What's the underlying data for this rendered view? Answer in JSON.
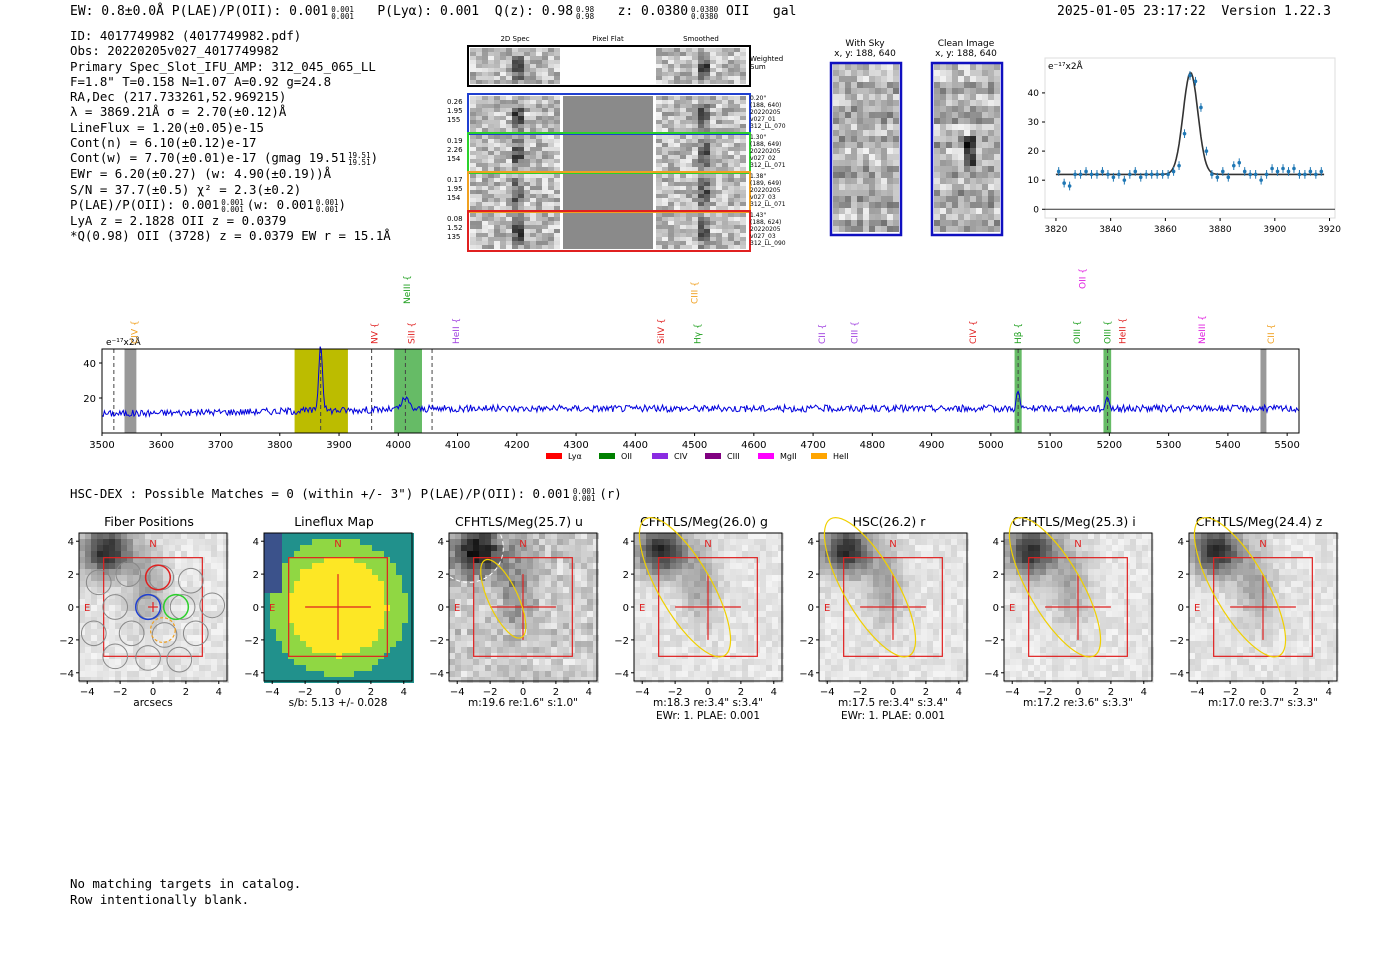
{
  "header": {
    "summary": "EW: 0.8±0.0Å  P(LAE)/P(OII): 0.001",
    "plae_sup": "0.001",
    "plae_sub": "0.001",
    "plya": "P(Lyα): 0.001",
    "qz": "Q(z): 0.98",
    "qz_sup": "0.98",
    "qz_sub": "0.98",
    "z": "z: 0.0380",
    "z_sup": "0.0380",
    "z_sub": "0.0380",
    "line": "OII",
    "gal": "gal",
    "datetime": "2025-01-05 23:17:22",
    "version": "Version 1.22.3"
  },
  "info": {
    "id": "ID: 4017749982 (4017749982.pdf)",
    "obs": "Obs: 20220205v027_4017749982",
    "slot": "Primary Spec_Slot_IFU_AMP: 312_045_065_LL",
    "fwhm": "F=1.8\"  T=0.158  N=1.07  A=0.92  g=24.8",
    "radec": "RA,Dec (217.733261,52.969215)",
    "lambda": "λ = 3869.21Å  σ = 2.70(±0.12)Å",
    "lineflux": "LineFlux = 1.20(±0.05)e-15",
    "contn": "Cont(n) = 6.10(±0.12)e-17",
    "contw": "Cont(w) = 7.70(±0.01)e-17 (gmag 19.51",
    "contw_sup": "19.51",
    "contw_sub": "19.51",
    "ewr": "EWr = 6.20(±0.27) (w: 4.90(±0.19))Å",
    "sn": "S/N = 37.7(±0.5)  χ² = 2.3(±0.2)",
    "plae": "P(LAE)/P(OII): 0.001",
    "plae_sup": "0.001",
    "plae_sub": "0.001",
    "plae_w": "(w: 0.001",
    "plae_w_sup": "0.001",
    "plae_w_sub": "0.001",
    "lya": "LyA z = 2.1828   OII z = 0.0379",
    "q": "*Q(0.98) OII (3728) z = 0.0379   EW r = 15.1Å"
  },
  "spec2d": {
    "col_2d": "2D Spec",
    "col_flat": "Pixel Flat",
    "col_smooth": "Smoothed",
    "weighted": "Weighted Sum",
    "rows": [
      {
        "w": "0.26",
        "s": "1.95",
        "n": "155",
        "color": "#1f3fd0",
        "info": [
          "0.20\"",
          "(188, 640)",
          "20220205",
          "v027_01",
          "312_LL_070"
        ]
      },
      {
        "w": "0.19",
        "s": "2.26",
        "n": "154",
        "color": "#2bd02b",
        "info": [
          "1.30\"",
          "(188, 649)",
          "20220205",
          "v027_02",
          "312_LL_071"
        ]
      },
      {
        "w": "0.17",
        "s": "1.95",
        "n": "154",
        "color": "#f0a020",
        "info": [
          "1.38\"",
          "(189, 649)",
          "20220205",
          "v027_03",
          "312_LL_071"
        ]
      },
      {
        "w": "0.08",
        "s": "1.52",
        "n": "135",
        "color": "#e02020",
        "info": [
          "1.43\"",
          "(188, 624)",
          "20220205",
          "v027_03",
          "312_LL_090"
        ]
      }
    ]
  },
  "cutouts": {
    "sky_title": "With Sky",
    "sky_xy": "x, y: 188, 640",
    "clean_title": "Clean Image",
    "clean_xy": "x, y: 188, 640"
  },
  "fit_chart": {
    "type": "scatter",
    "unit_label": "e⁻¹⁷x2Å",
    "xlim": [
      3816,
      3922
    ],
    "ylim": [
      -3,
      52
    ],
    "xticks": [
      3820,
      3840,
      3860,
      3880,
      3900,
      3920
    ],
    "yticks": [
      0,
      10,
      20,
      30,
      40
    ],
    "points_x": [
      3821,
      3823,
      3825,
      3827,
      3829,
      3831,
      3833,
      3835,
      3837,
      3839,
      3841,
      3843,
      3845,
      3847,
      3849,
      3851,
      3853,
      3855,
      3857,
      3859,
      3861,
      3863,
      3865,
      3867,
      3869,
      3871,
      3873,
      3875,
      3877,
      3879,
      3881,
      3883,
      3885,
      3887,
      3889,
      3891,
      3893,
      3895,
      3897,
      3899,
      3901,
      3903,
      3905,
      3907,
      3909,
      3911,
      3913,
      3915,
      3917
    ],
    "points_y": [
      13,
      9,
      8,
      12,
      12,
      13,
      12,
      12,
      13,
      12,
      11,
      12,
      10,
      12,
      13,
      11,
      12,
      12,
      12,
      12,
      12,
      13,
      15,
      26,
      46,
      44,
      35,
      20,
      12,
      11,
      13,
      11,
      15,
      16,
      13,
      12,
      12,
      10,
      12,
      14,
      13,
      14,
      13,
      14,
      12,
      12,
      13,
      12,
      13
    ],
    "model_color": "#333333",
    "point_color": "#1f77b4"
  },
  "spectrum": {
    "type": "line",
    "unit_label": "e⁻¹⁷x2Å",
    "xlim": [
      3500,
      5520
    ],
    "ylim": [
      0,
      48
    ],
    "xticks": [
      3500,
      3600,
      3700,
      3800,
      3900,
      4000,
      4100,
      4200,
      4300,
      4400,
      4500,
      4600,
      4700,
      4800,
      4900,
      5000,
      5100,
      5200,
      5300,
      5400,
      5500
    ],
    "yticks": [
      20,
      40
    ],
    "line_color": "#0000dd",
    "line_markers": [
      {
        "name": "CIV",
        "x": 3555,
        "color": "#f0a020",
        "tier": 0
      },
      {
        "name": "NV",
        "x": 3960,
        "color": "#e02020",
        "tier": 0
      },
      {
        "name": "NeIII",
        "x": 4015,
        "color": "#20a020",
        "tier": 2
      },
      {
        "name": "SiII",
        "x": 4022,
        "color": "#e02020",
        "tier": 0
      },
      {
        "name": "HeII",
        "x": 4097,
        "color": "#a040e0",
        "tier": 0
      },
      {
        "name": "SiIV",
        "x": 4443,
        "color": "#e02020",
        "tier": 0
      },
      {
        "name": "CIII",
        "x": 4500,
        "color": "#f0a020",
        "tier": 2
      },
      {
        "name": "Hγ",
        "x": 4505,
        "color": "#20a020",
        "tier": 0
      },
      {
        "name": "CII",
        "x": 4715,
        "color": "#a040e0",
        "tier": 0
      },
      {
        "name": "CIII",
        "x": 4770,
        "color": "#a040e0",
        "tier": 0
      },
      {
        "name": "CIV",
        "x": 4970,
        "color": "#e02020",
        "tier": 0
      },
      {
        "name": "Hβ",
        "x": 5046,
        "color": "#20a020",
        "tier": 0
      },
      {
        "name": "OII",
        "x": 5155,
        "color": "#e020e0",
        "tier": 3
      },
      {
        "name": "OIII",
        "x": 5145,
        "color": "#20a020",
        "tier": 0
      },
      {
        "name": "OIII",
        "x": 5197,
        "color": "#20a020",
        "tier": 0
      },
      {
        "name": "HeII",
        "x": 5222,
        "color": "#e02020",
        "tier": 0
      },
      {
        "name": "NeIII",
        "x": 5356,
        "color": "#e020e0",
        "tier": 0
      },
      {
        "name": "CII",
        "x": 5473,
        "color": "#f0a020",
        "tier": 0
      }
    ],
    "legend": [
      {
        "name": "Lyα",
        "color": "#ff0000"
      },
      {
        "name": "OII",
        "color": "#008000"
      },
      {
        "name": "CIV",
        "color": "#8a2be2"
      },
      {
        "name": "CIII",
        "color": "#800080"
      },
      {
        "name": "MgII",
        "color": "#ff00ff"
      },
      {
        "name": "HeII",
        "color": "#ffa500"
      }
    ]
  },
  "hsc": {
    "title": "HSC-DEX : Possible Matches = 0 (within +/- 3\")  P(LAE)/P(OII): 0.001",
    "sup": "0.001",
    "sub": "0.001",
    "suffix": "(r)"
  },
  "panels": [
    {
      "title": "Fiber Positions",
      "cap1": "arcsecs",
      "cap2": ""
    },
    {
      "title": "Lineflux Map",
      "cap1": "s/b: 5.13 +/- 0.028",
      "cap2": ""
    },
    {
      "title": "CFHTLS/Meg(25.7) u",
      "cap1": "m:19.6   re:1.6\"   s:1.0\"",
      "cap2": ""
    },
    {
      "title": "CFHTLS/Meg(26.0) g",
      "cap1": "m:18.3   re:3.4\"   s:3.4\"",
      "cap2": "EWr: 1. PLAE: 0.001"
    },
    {
      "title": "HSC(26.2) r",
      "cap1": "m:17.5   re:3.4\"   s:3.4\"",
      "cap2": "EWr: 1. PLAE: 0.001"
    },
    {
      "title": "CFHTLS/Meg(25.3) i",
      "cap1": "m:17.2   re:3.6\"   s:3.3\"",
      "cap2": ""
    },
    {
      "title": "CFHTLS/Meg(24.4) z",
      "cap1": "m:17.0   re:3.7\"   s:3.3\"",
      "cap2": ""
    }
  ],
  "panel_axis": {
    "ticks": [
      "−4",
      "−2",
      "0",
      "2",
      "4"
    ],
    "north": "N",
    "east": "E"
  },
  "footer": {
    "line1": "No matching targets in catalog.",
    "line2": "Row intentionally blank."
  }
}
